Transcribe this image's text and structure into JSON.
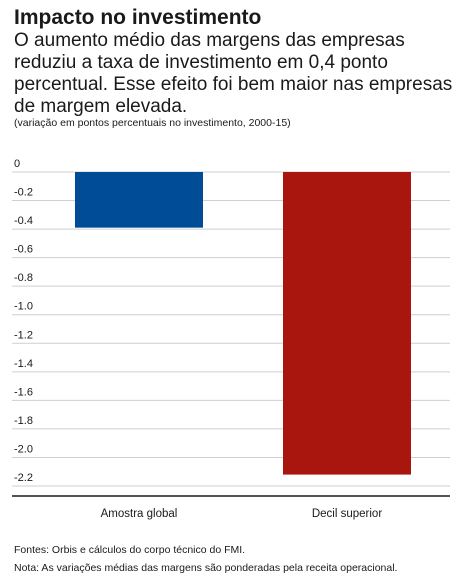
{
  "header": {
    "title": "Impacto no investimento",
    "subtitle": "O aumento médio das margens das empresas reduziu a taxa de investimento em 0,4 ponto percentual. Esse efeito foi bem maior nas empresas de margem elevada.",
    "units": "(variação em pontos percentuais no investimento, 2000-15)"
  },
  "chart_data": {
    "type": "bar",
    "categories": [
      "Amostra global",
      "Decil superior"
    ],
    "values": [
      -0.39,
      -2.12
    ],
    "colors": [
      "#004c97",
      "#a8160e"
    ],
    "ylim": [
      -2.2,
      0
    ],
    "yticks": [
      0,
      -0.2,
      -0.4,
      -0.6,
      -0.8,
      -1.0,
      -1.2,
      -1.4,
      -1.6,
      -1.8,
      -2.0,
      -2.2
    ],
    "ytick_labels": [
      "0",
      "-0.2",
      "-0.4",
      "-0.6",
      "-0.8",
      "-1.0",
      "-1.2",
      "-1.4",
      "-1.6",
      "-1.8",
      "-2.0",
      "-2.2"
    ],
    "grid": true
  },
  "footer": {
    "sources": "Fontes: Orbis e cálculos do corpo técnico do FMI.",
    "note": "Nota: As variações médias das margens são ponderadas pela receita operacional."
  }
}
